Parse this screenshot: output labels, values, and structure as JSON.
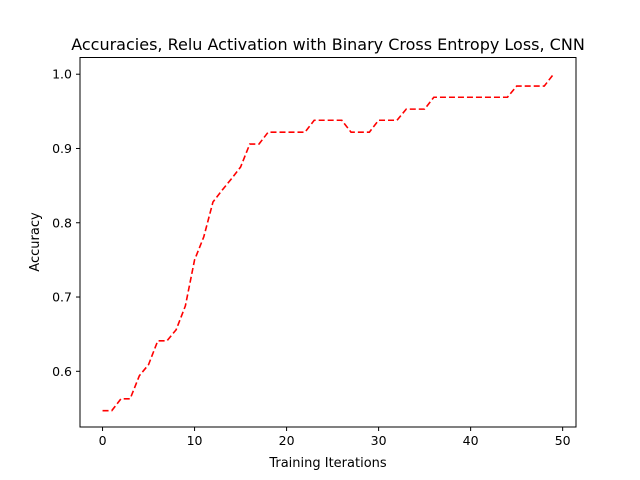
{
  "chart_data": {
    "type": "line",
    "title": "Accuracies, Relu Activation with Binary Cross Entropy Loss, CNN",
    "xlabel": "Training Iterations",
    "ylabel": "Accuracy",
    "xlim": [
      -2.45,
      51.45
    ],
    "ylim": [
      0.525,
      1.0225
    ],
    "xticks": [
      0,
      10,
      20,
      30,
      40,
      50
    ],
    "yticks": [
      0.6,
      0.7,
      0.8,
      0.9,
      1.0
    ],
    "ytick_labels": [
      "0.6",
      "0.7",
      "0.8",
      "0.9",
      "1.0"
    ],
    "grid": false,
    "series": [
      {
        "color": "#ff0000",
        "line_style": "dashed",
        "x": [
          0,
          1,
          2,
          3,
          4,
          5,
          6,
          7,
          8,
          9,
          10,
          11,
          12,
          13,
          14,
          15,
          16,
          17,
          18,
          19,
          20,
          21,
          22,
          23,
          24,
          25,
          26,
          27,
          28,
          29,
          30,
          31,
          32,
          33,
          34,
          35,
          36,
          37,
          38,
          39,
          40,
          41,
          42,
          43,
          44,
          45,
          46,
          47,
          48,
          49
        ],
        "y": [
          0.547,
          0.547,
          0.563,
          0.563,
          0.594,
          0.609,
          0.641,
          0.641,
          0.656,
          0.688,
          0.75,
          0.781,
          0.828,
          0.844,
          0.859,
          0.875,
          0.906,
          0.906,
          0.922,
          0.922,
          0.922,
          0.922,
          0.922,
          0.938,
          0.938,
          0.938,
          0.938,
          0.922,
          0.922,
          0.922,
          0.938,
          0.938,
          0.938,
          0.953,
          0.953,
          0.953,
          0.969,
          0.969,
          0.969,
          0.969,
          0.969,
          0.969,
          0.969,
          0.969,
          0.969,
          0.984,
          0.984,
          0.984,
          0.984,
          1.0
        ]
      }
    ]
  }
}
